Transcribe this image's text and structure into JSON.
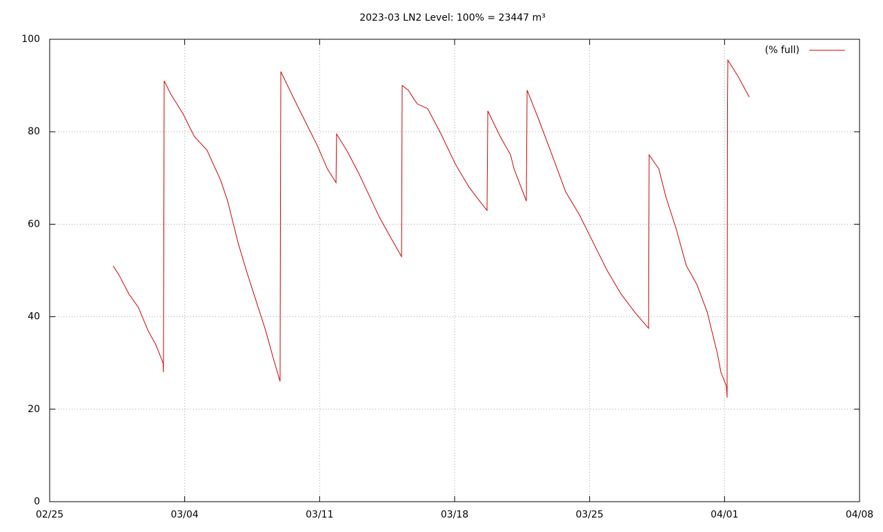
{
  "chart_data": {
    "type": "line",
    "title": "2023-03 LN2 Level: 100% = 23447 m³",
    "series": [
      {
        "name": "(% full)",
        "color": "#cc0000",
        "x": [
          3.29,
          3.6,
          4.1,
          4.6,
          5.1,
          5.5,
          5.88,
          5.9,
          5.92,
          5.94,
          6.3,
          6.9,
          7.5,
          8.16,
          8.87,
          9.23,
          9.77,
          10.2,
          10.66,
          11.2,
          11.6,
          11.95,
          11.97,
          11.99,
          12.8,
          13.4,
          13.88,
          14.4,
          14.85,
          14.88,
          15.4,
          16.03,
          17.1,
          17.7,
          18.25,
          18.28,
          18.6,
          18.9,
          19.07,
          19.6,
          20.3,
          21.04,
          21.75,
          22.3,
          22.68,
          22.72,
          23.36,
          23.9,
          24.08,
          24.72,
          24.76,
          25.33,
          26.05,
          26.76,
          27.48,
          28.19,
          28.91,
          29.62,
          30.34,
          31.06,
          31.09,
          31.59,
          31.95,
          32.49,
          33.02,
          33.56,
          34.1,
          34.63,
          34.81,
          35.1,
          35.13,
          35.15,
          35.17,
          35.7,
          36.28
        ],
        "values": [
          51,
          49,
          45,
          42,
          37,
          34,
          30,
          28,
          59,
          91,
          88,
          84,
          79,
          76,
          69.5,
          65,
          56,
          50,
          44,
          37,
          31,
          26,
          70,
          93,
          86,
          81,
          77,
          72,
          69,
          79.5,
          76,
          71,
          61.5,
          57,
          53,
          90,
          89,
          87,
          86,
          85,
          79.5,
          73,
          68,
          65,
          63,
          84.5,
          79,
          75,
          72,
          65,
          89,
          83,
          75,
          67,
          62,
          56,
          50,
          45,
          41,
          37.5,
          75,
          72,
          66,
          59,
          51,
          47,
          41,
          32,
          28,
          25,
          22.5,
          86,
          95.5,
          92,
          87.5
        ]
      }
    ],
    "xlim": [
      0,
      42
    ],
    "xticks": [
      {
        "value": 0,
        "label": "02/25"
      },
      {
        "value": 7,
        "label": "03/04"
      },
      {
        "value": 14,
        "label": "03/11"
      },
      {
        "value": 21,
        "label": "03/18"
      },
      {
        "value": 28,
        "label": "03/25"
      },
      {
        "value": 35,
        "label": "04/01"
      },
      {
        "value": 42,
        "label": "04/08"
      }
    ],
    "ylim": [
      0,
      100
    ],
    "yticks": [
      0,
      20,
      40,
      60,
      80,
      100
    ],
    "grid": true,
    "legend": "top-right"
  }
}
